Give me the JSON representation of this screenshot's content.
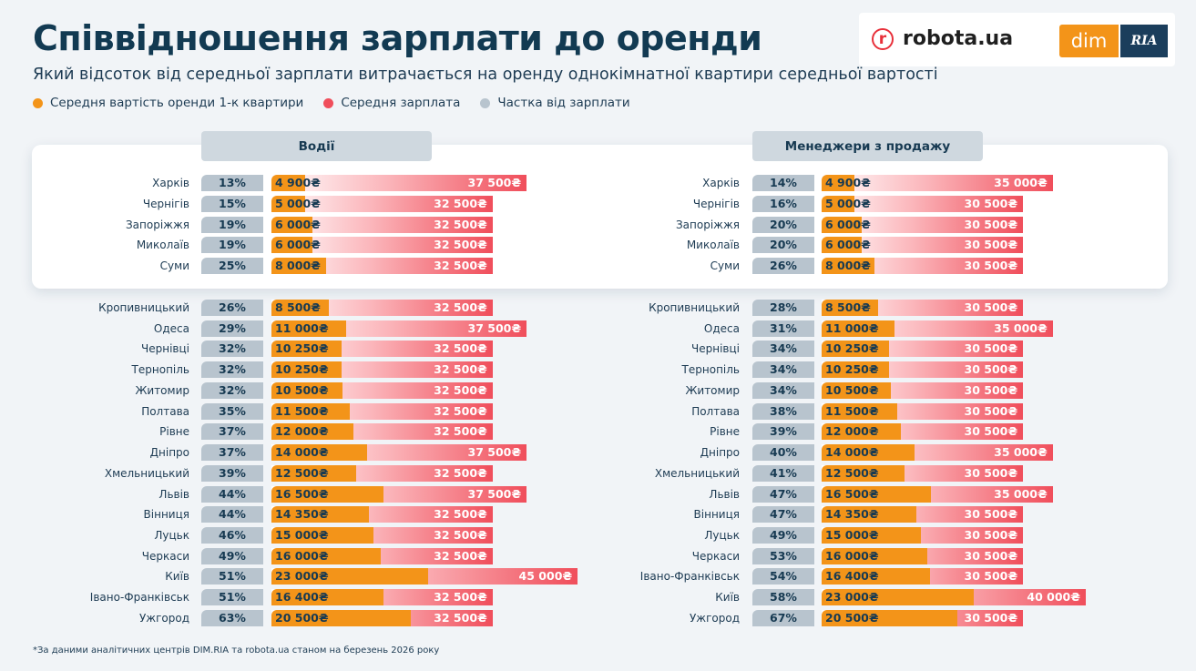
{
  "header": {
    "title": "Співвідношення зарплати до оренди",
    "subtitle": "Який відсоток від середньої зарплати витрачається на оренду однокімнатної квартири середньої вартості"
  },
  "logos": {
    "robota": "robota.ua",
    "dim": "dim",
    "ria": "RIA"
  },
  "colors": {
    "rent": "#f39419",
    "salary": "#f04e5b",
    "share": "#b8c4ce",
    "text": "#123a52"
  },
  "legend": [
    {
      "label": "Середня вартість оренди 1-к квартири",
      "color": "#f39419"
    },
    {
      "label": "Середня зарплата",
      "color": "#f04e5b"
    },
    {
      "label": "Частка від зарплати",
      "color": "#b8c4ce"
    }
  ],
  "chart_data": [
    {
      "type": "bar",
      "title": "Водії",
      "highlighted_top": 5,
      "rows": [
        {
          "city": "Харків",
          "share": "13%",
          "rent": "4 900₴",
          "salary": "37 500₴"
        },
        {
          "city": "Чернігів",
          "share": "15%",
          "rent": "5 000₴",
          "salary": "32 500₴"
        },
        {
          "city": "Запоріжжя",
          "share": "19%",
          "rent": "6 000₴",
          "salary": "32 500₴"
        },
        {
          "city": "Миколаїв",
          "share": "19%",
          "rent": "6 000₴",
          "salary": "32 500₴"
        },
        {
          "city": "Суми",
          "share": "25%",
          "rent": "8 000₴",
          "salary": "32 500₴"
        },
        {
          "city": "Кропивницький",
          "share": "26%",
          "rent": "8 500₴",
          "salary": "32 500₴"
        },
        {
          "city": "Одеса",
          "share": "29%",
          "rent": "11 000₴",
          "salary": "37 500₴"
        },
        {
          "city": "Чернівці",
          "share": "32%",
          "rent": "10 250₴",
          "salary": "32 500₴"
        },
        {
          "city": "Тернопіль",
          "share": "32%",
          "rent": "10 250₴",
          "salary": "32 500₴"
        },
        {
          "city": "Житомир",
          "share": "32%",
          "rent": "10 500₴",
          "salary": "32 500₴"
        },
        {
          "city": "Полтава",
          "share": "35%",
          "rent": "11 500₴",
          "salary": "32 500₴"
        },
        {
          "city": "Рівне",
          "share": "37%",
          "rent": "12 000₴",
          "salary": "32 500₴"
        },
        {
          "city": "Дніпро",
          "share": "37%",
          "rent": "14 000₴",
          "salary": "37 500₴"
        },
        {
          "city": "Хмельницький",
          "share": "39%",
          "rent": "12 500₴",
          "salary": "32 500₴"
        },
        {
          "city": "Львів",
          "share": "44%",
          "rent": "16 500₴",
          "salary": "37 500₴"
        },
        {
          "city": "Вінниця",
          "share": "44%",
          "rent": "14 350₴",
          "salary": "32 500₴"
        },
        {
          "city": "Луцьк",
          "share": "46%",
          "rent": "15 000₴",
          "salary": "32 500₴"
        },
        {
          "city": "Черкаси",
          "share": "49%",
          "rent": "16 000₴",
          "salary": "32 500₴"
        },
        {
          "city": "Київ",
          "share": "51%",
          "rent": "23 000₴",
          "salary": "45 000₴"
        },
        {
          "city": "Івано-Франківськ",
          "share": "51%",
          "rent": "16 400₴",
          "salary": "32 500₴"
        },
        {
          "city": "Ужгород",
          "share": "63%",
          "rent": "20 500₴",
          "salary": "32 500₴"
        }
      ]
    },
    {
      "type": "bar",
      "title": "Менеджери з продажу",
      "highlighted_top": 5,
      "rows": [
        {
          "city": "Харків",
          "share": "14%",
          "rent": "4 900₴",
          "salary": "35 000₴"
        },
        {
          "city": "Чернігів",
          "share": "16%",
          "rent": "5 000₴",
          "salary": "30 500₴"
        },
        {
          "city": "Запоріжжя",
          "share": "20%",
          "rent": "6 000₴",
          "salary": "30 500₴"
        },
        {
          "city": "Миколаїв",
          "share": "20%",
          "rent": "6 000₴",
          "salary": "30 500₴"
        },
        {
          "city": "Суми",
          "share": "26%",
          "rent": "8 000₴",
          "salary": "30 500₴"
        },
        {
          "city": "Кропивницький",
          "share": "28%",
          "rent": "8 500₴",
          "salary": "30 500₴"
        },
        {
          "city": "Одеса",
          "share": "31%",
          "rent": "11 000₴",
          "salary": "35 000₴"
        },
        {
          "city": "Чернівці",
          "share": "34%",
          "rent": "10 250₴",
          "salary": "30 500₴"
        },
        {
          "city": "Тернопіль",
          "share": "34%",
          "rent": "10 250₴",
          "salary": "30 500₴"
        },
        {
          "city": "Житомир",
          "share": "34%",
          "rent": "10 500₴",
          "salary": "30 500₴"
        },
        {
          "city": "Полтава",
          "share": "38%",
          "rent": "11 500₴",
          "salary": "30 500₴"
        },
        {
          "city": "Рівне",
          "share": "39%",
          "rent": "12 000₴",
          "salary": "30 500₴"
        },
        {
          "city": "Дніпро",
          "share": "40%",
          "rent": "14 000₴",
          "salary": "35 000₴"
        },
        {
          "city": "Хмельницький",
          "share": "41%",
          "rent": "12 500₴",
          "salary": "30 500₴"
        },
        {
          "city": "Львів",
          "share": "47%",
          "rent": "16 500₴",
          "salary": "35 000₴"
        },
        {
          "city": "Вінниця",
          "share": "47%",
          "rent": "14 350₴",
          "salary": "30 500₴"
        },
        {
          "city": "Луцьк",
          "share": "49%",
          "rent": "15 000₴",
          "salary": "30 500₴"
        },
        {
          "city": "Черкаси",
          "share": "53%",
          "rent": "16 000₴",
          "salary": "30 500₴"
        },
        {
          "city": "Івано-Франківськ",
          "share": "54%",
          "rent": "16 400₴",
          "salary": "30 500₴"
        },
        {
          "city": "Київ",
          "share": "58%",
          "rent": "23 000₴",
          "salary": "40 000₴"
        },
        {
          "city": "Ужгород",
          "share": "67%",
          "rent": "20 500₴",
          "salary": "30 500₴"
        }
      ]
    }
  ],
  "footnote": "*За даними аналітичних центрів DIM.RIA та robota.ua станом на березень 2026 року"
}
